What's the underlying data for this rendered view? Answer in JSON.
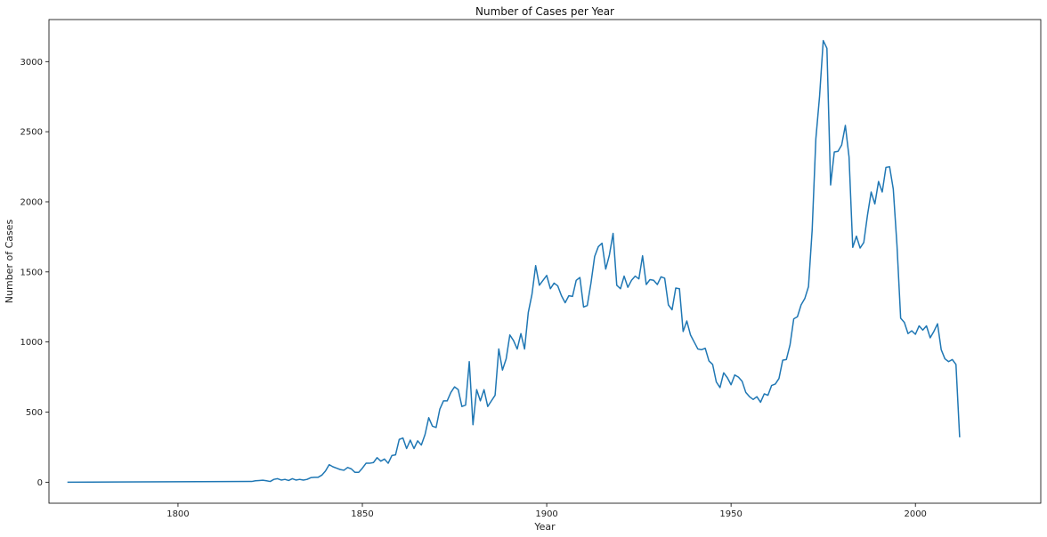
{
  "chart_data": {
    "type": "line",
    "title": "Number of Cases per Year",
    "xlabel": "Year",
    "ylabel": "Number of Cases",
    "xlim": [
      1765,
      2034
    ],
    "ylim": [
      -150,
      3300
    ],
    "x_ticks": [
      1800,
      1850,
      1900,
      1950,
      2000
    ],
    "y_ticks": [
      0,
      500,
      1000,
      1500,
      2000,
      2500,
      3000
    ],
    "grid": false,
    "legend": "none",
    "series": [
      {
        "color": "#1f77b4",
        "points": [
          [
            1770,
            0
          ],
          [
            1820,
            5
          ],
          [
            1821,
            10
          ],
          [
            1822,
            12
          ],
          [
            1823,
            14
          ],
          [
            1824,
            10
          ],
          [
            1825,
            5
          ],
          [
            1826,
            20
          ],
          [
            1827,
            25
          ],
          [
            1828,
            15
          ],
          [
            1829,
            20
          ],
          [
            1830,
            12
          ],
          [
            1831,
            25
          ],
          [
            1832,
            15
          ],
          [
            1833,
            20
          ],
          [
            1834,
            15
          ],
          [
            1835,
            20
          ],
          [
            1836,
            32
          ],
          [
            1837,
            35
          ],
          [
            1838,
            35
          ],
          [
            1839,
            50
          ],
          [
            1840,
            80
          ],
          [
            1841,
            125
          ],
          [
            1842,
            110
          ],
          [
            1843,
            100
          ],
          [
            1844,
            90
          ],
          [
            1845,
            85
          ],
          [
            1846,
            105
          ],
          [
            1847,
            95
          ],
          [
            1848,
            70
          ],
          [
            1849,
            70
          ],
          [
            1850,
            100
          ],
          [
            1851,
            135
          ],
          [
            1852,
            135
          ],
          [
            1853,
            140
          ],
          [
            1854,
            175
          ],
          [
            1855,
            150
          ],
          [
            1856,
            165
          ],
          [
            1857,
            135
          ],
          [
            1858,
            190
          ],
          [
            1859,
            195
          ],
          [
            1860,
            305
          ],
          [
            1861,
            315
          ],
          [
            1862,
            240
          ],
          [
            1863,
            300
          ],
          [
            1864,
            240
          ],
          [
            1865,
            295
          ],
          [
            1866,
            265
          ],
          [
            1867,
            340
          ],
          [
            1868,
            460
          ],
          [
            1869,
            400
          ],
          [
            1870,
            390
          ],
          [
            1871,
            520
          ],
          [
            1872,
            580
          ],
          [
            1873,
            580
          ],
          [
            1874,
            640
          ],
          [
            1875,
            680
          ],
          [
            1876,
            660
          ],
          [
            1877,
            540
          ],
          [
            1878,
            550
          ],
          [
            1879,
            860
          ],
          [
            1880,
            410
          ],
          [
            1881,
            660
          ],
          [
            1882,
            580
          ],
          [
            1883,
            660
          ],
          [
            1884,
            540
          ],
          [
            1885,
            580
          ],
          [
            1886,
            620
          ],
          [
            1887,
            950
          ],
          [
            1888,
            800
          ],
          [
            1889,
            880
          ],
          [
            1890,
            1050
          ],
          [
            1891,
            1010
          ],
          [
            1892,
            950
          ],
          [
            1893,
            1060
          ],
          [
            1894,
            950
          ],
          [
            1895,
            1210
          ],
          [
            1896,
            1340
          ],
          [
            1897,
            1545
          ],
          [
            1898,
            1405
          ],
          [
            1899,
            1440
          ],
          [
            1900,
            1475
          ],
          [
            1901,
            1380
          ],
          [
            1902,
            1420
          ],
          [
            1903,
            1400
          ],
          [
            1904,
            1330
          ],
          [
            1905,
            1280
          ],
          [
            1906,
            1330
          ],
          [
            1907,
            1325
          ],
          [
            1908,
            1440
          ],
          [
            1909,
            1460
          ],
          [
            1910,
            1250
          ],
          [
            1911,
            1260
          ],
          [
            1912,
            1420
          ],
          [
            1913,
            1610
          ],
          [
            1914,
            1680
          ],
          [
            1915,
            1705
          ],
          [
            1916,
            1520
          ],
          [
            1917,
            1620
          ],
          [
            1918,
            1775
          ],
          [
            1919,
            1405
          ],
          [
            1920,
            1380
          ],
          [
            1921,
            1470
          ],
          [
            1922,
            1390
          ],
          [
            1923,
            1440
          ],
          [
            1924,
            1470
          ],
          [
            1925,
            1450
          ],
          [
            1926,
            1615
          ],
          [
            1927,
            1410
          ],
          [
            1928,
            1445
          ],
          [
            1929,
            1440
          ],
          [
            1930,
            1410
          ],
          [
            1931,
            1465
          ],
          [
            1932,
            1455
          ],
          [
            1933,
            1265
          ],
          [
            1934,
            1230
          ],
          [
            1935,
            1385
          ],
          [
            1936,
            1380
          ],
          [
            1937,
            1075
          ],
          [
            1938,
            1150
          ],
          [
            1939,
            1050
          ],
          [
            1940,
            1000
          ],
          [
            1941,
            950
          ],
          [
            1942,
            945
          ],
          [
            1943,
            955
          ],
          [
            1944,
            865
          ],
          [
            1945,
            840
          ],
          [
            1946,
            715
          ],
          [
            1947,
            675
          ],
          [
            1948,
            780
          ],
          [
            1949,
            745
          ],
          [
            1950,
            695
          ],
          [
            1951,
            765
          ],
          [
            1952,
            750
          ],
          [
            1953,
            720
          ],
          [
            1954,
            640
          ],
          [
            1955,
            610
          ],
          [
            1956,
            590
          ],
          [
            1957,
            610
          ],
          [
            1958,
            570
          ],
          [
            1959,
            630
          ],
          [
            1960,
            620
          ],
          [
            1961,
            690
          ],
          [
            1962,
            700
          ],
          [
            1963,
            740
          ],
          [
            1964,
            870
          ],
          [
            1965,
            875
          ],
          [
            1966,
            980
          ],
          [
            1967,
            1165
          ],
          [
            1968,
            1180
          ],
          [
            1969,
            1265
          ],
          [
            1970,
            1310
          ],
          [
            1971,
            1395
          ],
          [
            1972,
            1800
          ],
          [
            1973,
            2450
          ],
          [
            1974,
            2750
          ],
          [
            1975,
            3150
          ],
          [
            1976,
            3095
          ],
          [
            1977,
            2120
          ],
          [
            1978,
            2355
          ],
          [
            1979,
            2360
          ],
          [
            1980,
            2405
          ],
          [
            1981,
            2545
          ],
          [
            1982,
            2320
          ],
          [
            1983,
            1675
          ],
          [
            1984,
            1755
          ],
          [
            1985,
            1670
          ],
          [
            1986,
            1710
          ],
          [
            1987,
            1905
          ],
          [
            1988,
            2070
          ],
          [
            1989,
            1985
          ],
          [
            1990,
            2145
          ],
          [
            1991,
            2070
          ],
          [
            1992,
            2245
          ],
          [
            1993,
            2250
          ],
          [
            1994,
            2090
          ],
          [
            1995,
            1690
          ],
          [
            1996,
            1170
          ],
          [
            1997,
            1140
          ],
          [
            1998,
            1060
          ],
          [
            1999,
            1080
          ],
          [
            2000,
            1055
          ],
          [
            2001,
            1115
          ],
          [
            2002,
            1085
          ],
          [
            2003,
            1115
          ],
          [
            2004,
            1030
          ],
          [
            2005,
            1075
          ],
          [
            2006,
            1130
          ],
          [
            2007,
            945
          ],
          [
            2008,
            880
          ],
          [
            2009,
            860
          ],
          [
            2010,
            875
          ],
          [
            2011,
            840
          ],
          [
            2012,
            320
          ]
        ]
      }
    ]
  }
}
